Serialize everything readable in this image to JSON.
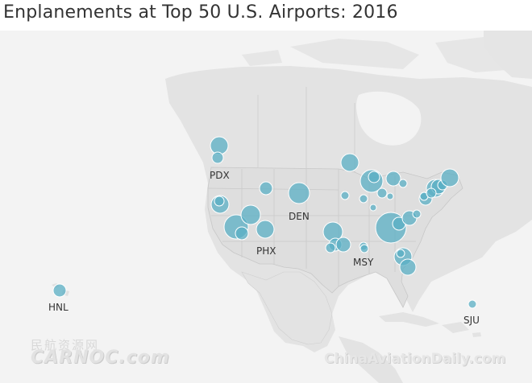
{
  "title": "Enplanements at Top 50 U.S. Airports: 2016",
  "colors": {
    "ocean": "#f3f3f3",
    "land": "#e3e3e3",
    "us": "#dedede",
    "border": "#c7c7c7",
    "bubble": "#5aafc4",
    "bubble_stroke": "#ffffff"
  },
  "labels": {
    "pdx": "PDX",
    "den": "DEN",
    "phx": "PHX",
    "msy": "MSY",
    "hnl": "HNL",
    "sju": "SJU"
  },
  "watermarks": {
    "cn": "民航资源网",
    "carnoc": "CARNOC.com",
    "cad": "ChinaAviationDaily.com"
  }
}
